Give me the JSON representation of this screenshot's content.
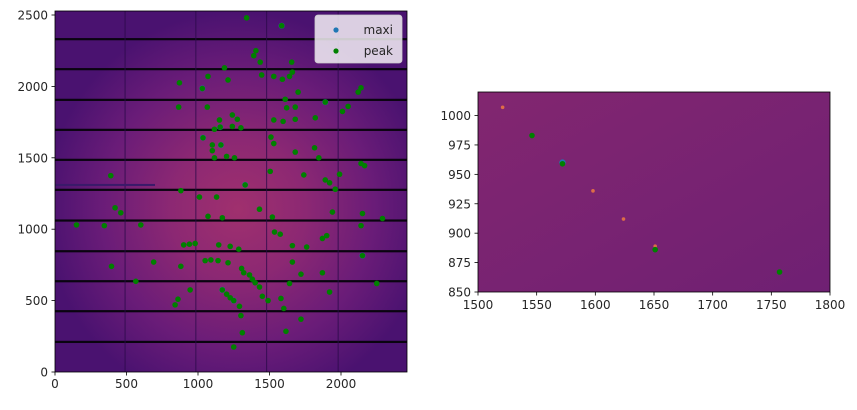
{
  "chart_data": [
    {
      "type": "scatter",
      "subtype": "image-with-overlay",
      "title": "",
      "xlabel": "",
      "ylabel": "",
      "xlim": [
        0,
        2463
      ],
      "ylim": [
        0,
        2527
      ],
      "xticks": [
        "0",
        "500",
        "1000",
        "1500",
        "2000"
      ],
      "yticks": [
        "0",
        "500",
        "1000",
        "1500",
        "2000",
        "2500"
      ],
      "grid": false,
      "legend": {
        "position": "upper right",
        "entries": [
          {
            "label": "maxi",
            "color": "#1f77b4"
          },
          {
            "label": "peak",
            "color": "#008000"
          }
        ]
      },
      "image": {
        "colormap": "magma",
        "background": "#5a1775",
        "center_glow": "#a0306e"
      },
      "detector_gaps_y": [
        2330,
        2120,
        1905,
        1695,
        1485,
        1275,
        1060,
        845,
        635,
        425,
        210
      ],
      "detector_gaps_x": [
        490,
        985,
        1480,
        1980
      ],
      "series": [
        {
          "name": "peak",
          "color": "#008000",
          "points": [
            [
              1340,
              2480
            ],
            [
              1585,
              2425
            ],
            [
              1390,
              2215
            ],
            [
              1405,
              2250
            ],
            [
              1435,
              2170
            ],
            [
              1655,
              2170
            ],
            [
              1445,
              2080
            ],
            [
              1530,
              2070
            ],
            [
              1590,
              2050
            ],
            [
              1640,
              2070
            ],
            [
              1660,
              2100
            ],
            [
              1185,
              2130
            ],
            [
              1070,
              2070
            ],
            [
              1030,
              1985
            ],
            [
              870,
              2025
            ],
            [
              1210,
              2045
            ],
            [
              1700,
              1960
            ],
            [
              1610,
              1910
            ],
            [
              2120,
              1960
            ],
            [
              2140,
              1990
            ],
            [
              1890,
              1890
            ],
            [
              865,
              1855
            ],
            [
              1065,
              1855
            ],
            [
              1620,
              1850
            ],
            [
              1680,
              1855
            ],
            [
              2010,
              1825
            ],
            [
              2050,
              1860
            ],
            [
              1820,
              1780
            ],
            [
              1150,
              1765
            ],
            [
              1275,
              1770
            ],
            [
              1240,
              1800
            ],
            [
              1530,
              1765
            ],
            [
              1595,
              1755
            ],
            [
              1680,
              1770
            ],
            [
              1240,
              1720
            ],
            [
              1155,
              1715
            ],
            [
              1115,
              1700
            ],
            [
              1300,
              1710
            ],
            [
              1035,
              1640
            ],
            [
              1100,
              1590
            ],
            [
              1160,
              1590
            ],
            [
              1510,
              1645
            ],
            [
              1530,
              1600
            ],
            [
              1815,
              1570
            ],
            [
              1100,
              1550
            ],
            [
              1115,
              1500
            ],
            [
              1200,
              1510
            ],
            [
              1255,
              1500
            ],
            [
              1680,
              1540
            ],
            [
              1845,
              1500
            ],
            [
              2140,
              1460
            ],
            [
              2165,
              1445
            ],
            [
              390,
              1375
            ],
            [
              1505,
              1405
            ],
            [
              1740,
              1380
            ],
            [
              1890,
              1345
            ],
            [
              1920,
              1325
            ],
            [
              1990,
              1385
            ],
            [
              1330,
              1310
            ],
            [
              1960,
              1280
            ],
            [
              880,
              1270
            ],
            [
              1010,
              1225
            ],
            [
              1130,
              1225
            ],
            [
              420,
              1150
            ],
            [
              460,
              1115
            ],
            [
              1070,
              1090
            ],
            [
              1170,
              1080
            ],
            [
              1430,
              1140
            ],
            [
              1520,
              1085
            ],
            [
              1940,
              1120
            ],
            [
              2150,
              1110
            ],
            [
              2290,
              1075
            ],
            [
              150,
              1030
            ],
            [
              345,
              1025
            ],
            [
              600,
              1030
            ],
            [
              1535,
              980
            ],
            [
              1575,
              965
            ],
            [
              1900,
              955
            ],
            [
              2140,
              1025
            ],
            [
              900,
              890
            ],
            [
              940,
              895
            ],
            [
              980,
              900
            ],
            [
              1145,
              890
            ],
            [
              1225,
              880
            ],
            [
              1285,
              860
            ],
            [
              1660,
              885
            ],
            [
              1760,
              875
            ],
            [
              1870,
              935
            ],
            [
              1050,
              780
            ],
            [
              1090,
              785
            ],
            [
              1140,
              780
            ],
            [
              1210,
              765
            ],
            [
              1660,
              770
            ],
            [
              1305,
              725
            ],
            [
              1320,
              695
            ],
            [
              1360,
              680
            ],
            [
              1380,
              650
            ],
            [
              1400,
              625
            ],
            [
              1430,
              595
            ],
            [
              395,
              740
            ],
            [
              690,
              770
            ],
            [
              880,
              740
            ],
            [
              1870,
              695
            ],
            [
              1720,
              685
            ],
            [
              2150,
              815
            ],
            [
              565,
              635
            ],
            [
              945,
              575
            ],
            [
              1170,
              575
            ],
            [
              1200,
              545
            ],
            [
              1225,
              520
            ],
            [
              1250,
              500
            ],
            [
              1290,
              460
            ],
            [
              1450,
              530
            ],
            [
              1490,
              500
            ],
            [
              1580,
              515
            ],
            [
              1600,
              445
            ],
            [
              1640,
              620
            ],
            [
              1920,
              560
            ],
            [
              2250,
              620
            ],
            [
              860,
              510
            ],
            [
              840,
              470
            ],
            [
              1300,
              395
            ],
            [
              1720,
              370
            ],
            [
              1615,
              285
            ],
            [
              1310,
              275
            ],
            [
              1250,
              175
            ]
          ]
        },
        {
          "name": "maxi",
          "color": "#1f77b4",
          "points": [
            [
              1585,
              2425
            ],
            [
              1030,
              1985
            ],
            [
              1890,
              1890
            ],
            [
              1160,
              1590
            ],
            [
              1155,
              1715
            ],
            [
              1035,
              1640
            ],
            [
              1330,
              1310
            ],
            [
              2150,
              815
            ],
            [
              1170,
              575
            ],
            [
              1250,
              500
            ]
          ]
        }
      ]
    },
    {
      "type": "scatter",
      "subtype": "image-with-overlay (zoom)",
      "title": "",
      "xlabel": "",
      "ylabel": "",
      "xlim": [
        1500,
        1800
      ],
      "ylim": [
        850,
        1020
      ],
      "xticks": [
        "1500",
        "1550",
        "1600",
        "1650",
        "1700",
        "1750",
        "1800"
      ],
      "yticks": [
        "850",
        "875",
        "900",
        "925",
        "950",
        "975",
        "1000"
      ],
      "grid": false,
      "image": {
        "colormap": "magma",
        "background": "#7c2470"
      },
      "hot_pixels": [
        [
          1521,
          1007
        ],
        [
          1598,
          936
        ],
        [
          1624,
          912
        ],
        [
          1651,
          889
        ]
      ],
      "series": [
        {
          "name": "peak",
          "color": "#008000",
          "points": [
            [
              1546,
              983
            ],
            [
              1572,
              959
            ],
            [
              1651,
              886
            ],
            [
              1757,
              867
            ]
          ]
        },
        {
          "name": "maxi",
          "color": "#1f77b4",
          "points": [
            [
              1572,
              960
            ]
          ]
        }
      ]
    }
  ],
  "left_plot": {
    "xticks": [
      {
        "v": 0,
        "label": "0"
      },
      {
        "v": 500,
        "label": "500"
      },
      {
        "v": 1000,
        "label": "1000"
      },
      {
        "v": 1500,
        "label": "1500"
      },
      {
        "v": 2000,
        "label": "2000"
      }
    ],
    "yticks": [
      {
        "v": 0,
        "label": "0"
      },
      {
        "v": 500,
        "label": "500"
      },
      {
        "v": 1000,
        "label": "1000"
      },
      {
        "v": 1500,
        "label": "1500"
      },
      {
        "v": 2000,
        "label": "2000"
      },
      {
        "v": 2500,
        "label": "2500"
      }
    ],
    "legend": {
      "maxi_label": "maxi",
      "peak_label": "peak"
    }
  },
  "right_plot": {
    "xticks": [
      {
        "v": 1500,
        "label": "1500"
      },
      {
        "v": 1550,
        "label": "1550"
      },
      {
        "v": 1600,
        "label": "1600"
      },
      {
        "v": 1650,
        "label": "1650"
      },
      {
        "v": 1700,
        "label": "1700"
      },
      {
        "v": 1750,
        "label": "1750"
      },
      {
        "v": 1800,
        "label": "1800"
      }
    ],
    "yticks": [
      {
        "v": 850,
        "label": "850"
      },
      {
        "v": 875,
        "label": "875"
      },
      {
        "v": 900,
        "label": "900"
      },
      {
        "v": 925,
        "label": "925"
      },
      {
        "v": 950,
        "label": "950"
      },
      {
        "v": 975,
        "label": "975"
      },
      {
        "v": 1000,
        "label": "1000"
      }
    ]
  }
}
